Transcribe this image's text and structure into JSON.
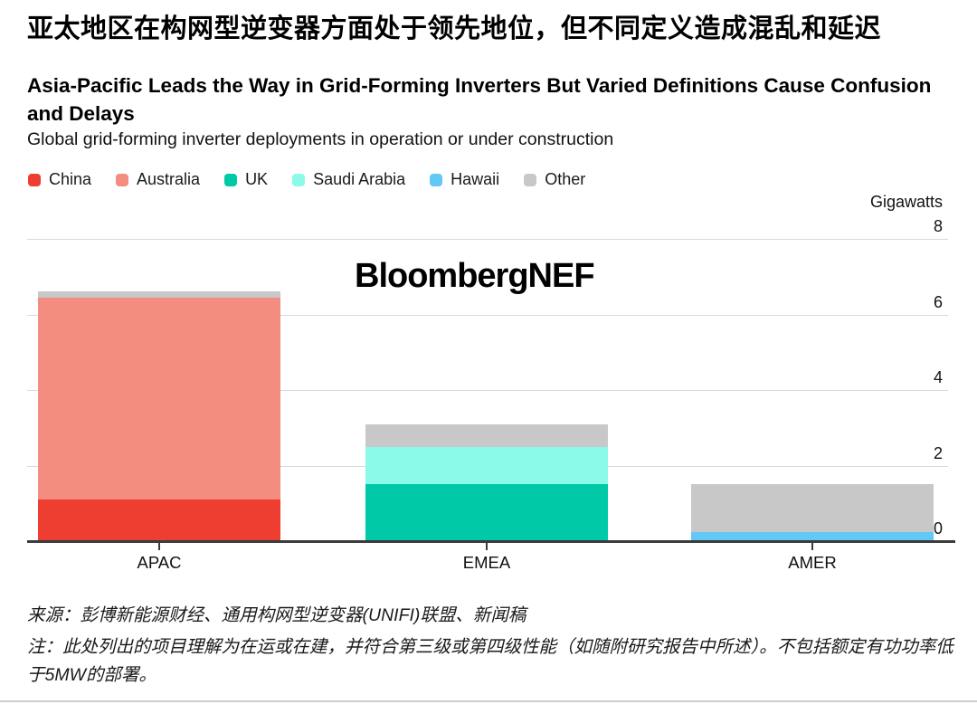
{
  "header": {
    "title_zh": "亚太地区在构网型逆变器方面处于领先地位，但不同定义造成混乱和延迟",
    "title_en": "Asia-Pacific Leads the Way in Grid-Forming Inverters But Varied Definitions Cause Confusion and Delays",
    "subtitle": "Global grid-forming inverter deployments in operation or under construction"
  },
  "watermark": "BloombergNEF",
  "footer": {
    "source": "来源：彭博新能源财经、通用构网型逆变器(UNIFI)联盟、新闻稿",
    "note": "注：此处列出的项目理解为在运或在建，并符合第三级或第四级性能（如随附研究报告中所述）。不包括额定有功功率低于5MW的部署。"
  },
  "chart_data": {
    "type": "bar",
    "stacked": true,
    "title": "Global grid-forming inverter deployments in operation or under construction",
    "unit_label": "Gigawatts",
    "categories": [
      "APAC",
      "EMEA",
      "AMER"
    ],
    "series": [
      {
        "name": "China",
        "color": "#ee3e32",
        "values": [
          1.1,
          0,
          0
        ]
      },
      {
        "name": "Australia",
        "color": "#f28d80",
        "values": [
          5.35,
          0,
          0
        ]
      },
      {
        "name": "UK",
        "color": "#00c9a7",
        "values": [
          0,
          1.5,
          0
        ]
      },
      {
        "name": "Saudi Arabia",
        "color": "#8bfae8",
        "values": [
          0,
          1.0,
          0
        ]
      },
      {
        "name": "Hawaii",
        "color": "#62c8f6",
        "values": [
          0,
          0,
          0.25
        ]
      },
      {
        "name": "Other",
        "color": "#c8c8c8",
        "values": [
          0.15,
          0.6,
          1.25
        ]
      }
    ],
    "totals": [
      6.6,
      3.1,
      1.5
    ],
    "ylim": [
      0,
      8
    ],
    "yticks": [
      0,
      2,
      4,
      6,
      8
    ],
    "grid": true,
    "legend_position": "top-left",
    "colors": {
      "gridline": "#d9d9d9",
      "axis": "#3b3b3b"
    }
  }
}
